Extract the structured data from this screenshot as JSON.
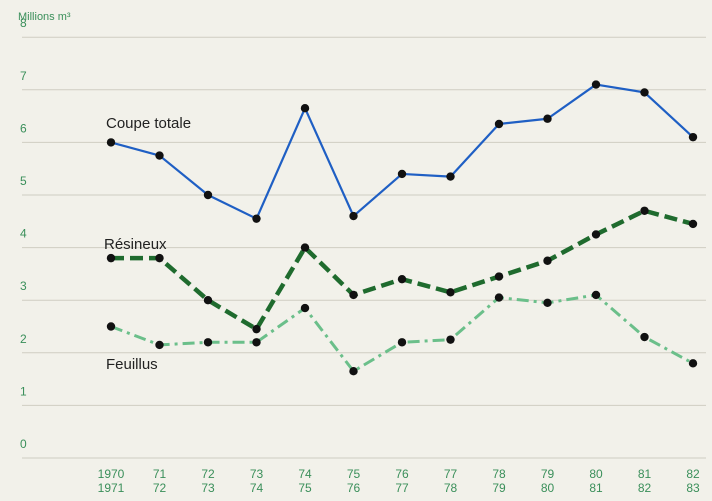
{
  "chart_data": {
    "type": "line",
    "ylabel": "Millions m³",
    "ylim": [
      0,
      8
    ],
    "yticks": [
      "0",
      "1",
      "2",
      "3",
      "4",
      "5",
      "6",
      "7",
      "8"
    ],
    "grid": true,
    "categories": [
      {
        "top": "1970",
        "bottom": "1971"
      },
      {
        "top": "71",
        "bottom": "72"
      },
      {
        "top": "72",
        "bottom": "73"
      },
      {
        "top": "73",
        "bottom": "74"
      },
      {
        "top": "74",
        "bottom": "75"
      },
      {
        "top": "75",
        "bottom": "76"
      },
      {
        "top": "76",
        "bottom": "77"
      },
      {
        "top": "77",
        "bottom": "78"
      },
      {
        "top": "78",
        "bottom": "79"
      },
      {
        "top": "79",
        "bottom": "80"
      },
      {
        "top": "80",
        "bottom": "81"
      },
      {
        "top": "81",
        "bottom": "82"
      },
      {
        "top": "82",
        "bottom": "83"
      }
    ],
    "series": [
      {
        "name": "Coupe totale",
        "color": "#1f5fc4",
        "style": "solid",
        "values": [
          6.0,
          5.75,
          5.0,
          4.55,
          6.65,
          4.6,
          5.4,
          5.35,
          6.35,
          6.45,
          7.1,
          6.95,
          6.1
        ]
      },
      {
        "name": "Résineux",
        "color": "#1f6b2e",
        "style": "dashed",
        "values": [
          3.8,
          3.8,
          3.0,
          2.45,
          4.0,
          3.1,
          3.4,
          3.15,
          3.45,
          3.75,
          4.25,
          4.7,
          4.45
        ]
      },
      {
        "name": "Feuillus",
        "color": "#6bbf8a",
        "style": "dashdot",
        "values": [
          2.5,
          2.15,
          2.2,
          2.2,
          2.85,
          1.65,
          2.2,
          2.25,
          3.05,
          2.95,
          3.1,
          2.3,
          1.8
        ]
      }
    ]
  }
}
